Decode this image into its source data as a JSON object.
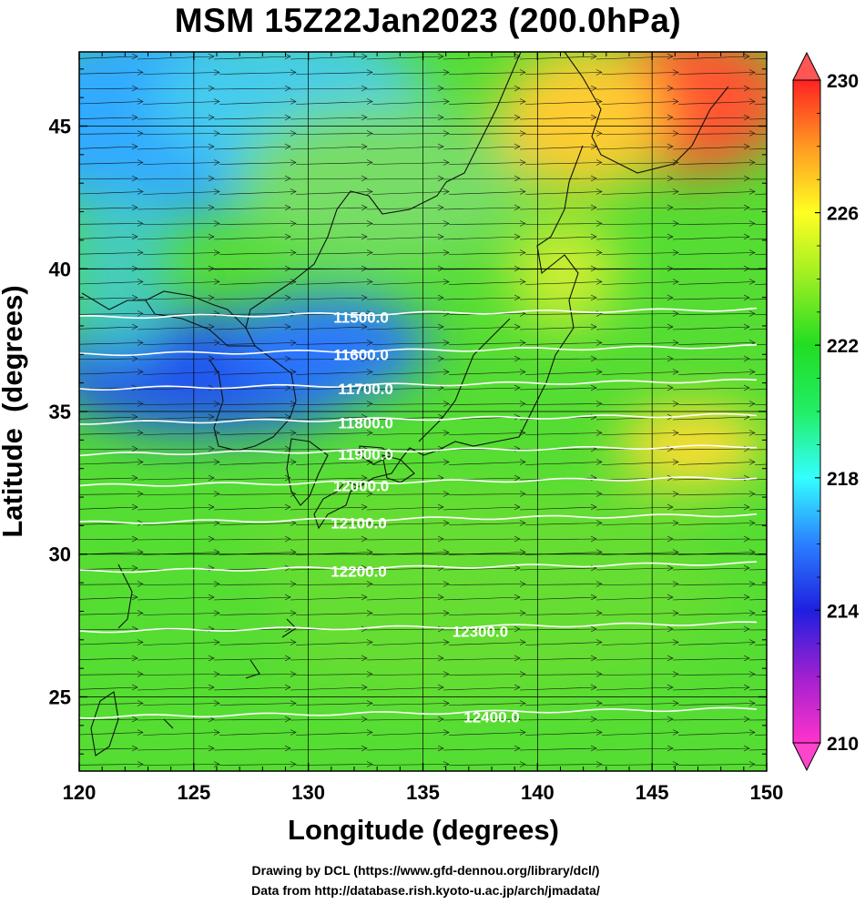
{
  "title": "MSM 15Z22Jan2023 (200.0hPa)",
  "credits": {
    "line1": "Drawing by DCL (https://www.gfd-dennou.org/library/dcl/)",
    "line2": "Data from http://database.rish.kyoto-u.ac.jp/arch/jmadata/"
  },
  "chart_data": {
    "type": "heatmap",
    "xlabel": "Longitude (degrees)",
    "ylabel": "Latitude  (degrees)",
    "xlim": [
      120,
      150
    ],
    "ylim": [
      22.4,
      47.6
    ],
    "x_ticks": [
      120,
      125,
      130,
      135,
      140,
      145,
      150
    ],
    "y_ticks": [
      25,
      30,
      35,
      40,
      45
    ],
    "grid": true,
    "colorbar": {
      "range": [
        210,
        230
      ],
      "tick_labels": [
        210,
        214,
        218,
        222,
        226,
        230
      ],
      "extends": "both",
      "colors": [
        "#ff33cc",
        "#1f1fe0",
        "#33ffff",
        "#22dd22",
        "#ffff22",
        "#ff2222"
      ]
    },
    "contours": [
      {
        "label": "11500.0",
        "lat": 38.3,
        "label_lon": 132.3
      },
      {
        "label": "11600.0",
        "lat": 37.0,
        "label_lon": 132.3
      },
      {
        "label": "11700.0",
        "lat": 35.8,
        "label_lon": 132.5
      },
      {
        "label": "11800.0",
        "lat": 34.6,
        "label_lon": 132.5
      },
      {
        "label": "11900.0",
        "lat": 33.5,
        "label_lon": 132.5
      },
      {
        "label": "12000.0",
        "lat": 32.4,
        "label_lon": 132.3
      },
      {
        "label": "12100.0",
        "lat": 31.1,
        "label_lon": 132.2
      },
      {
        "label": "12200.0",
        "lat": 29.4,
        "label_lon": 132.2
      },
      {
        "label": "12300.0",
        "lat": 27.3,
        "label_lon": 137.5
      },
      {
        "label": "12400.0",
        "lat": 24.3,
        "label_lon": 138.0
      }
    ],
    "wind_vectors": "westerly"
  }
}
